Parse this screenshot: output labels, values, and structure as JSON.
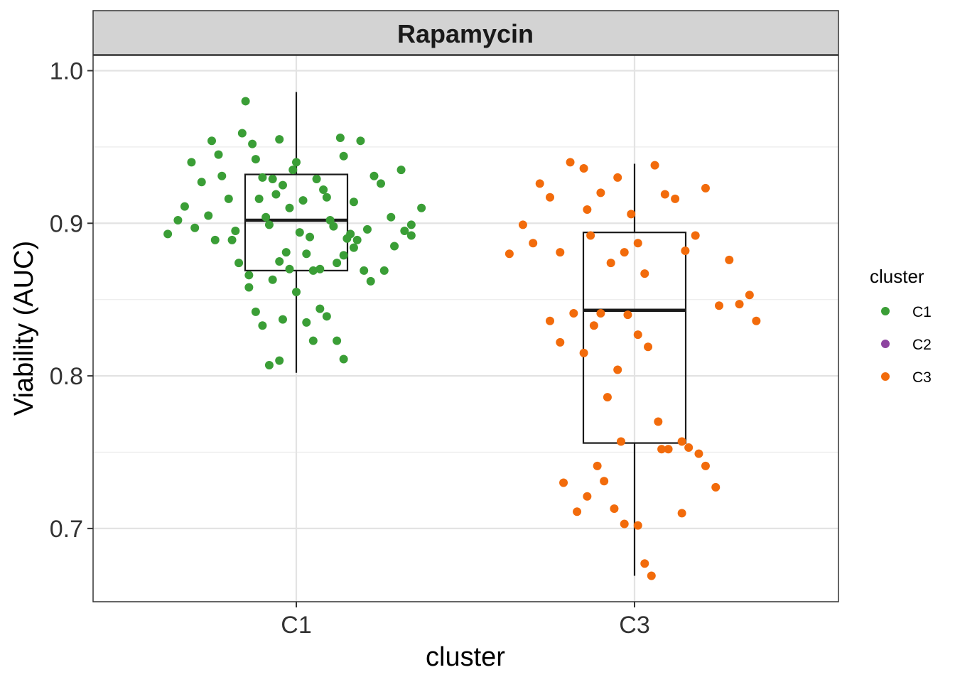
{
  "chart_data": {
    "type": "box",
    "title": "Rapamycin",
    "xlabel": "cluster",
    "ylabel": "Viability (AUC)",
    "categories": [
      "C1",
      "C3"
    ],
    "ylim": [
      0.652,
      1.01
    ],
    "yticks": [
      0.7,
      0.8,
      0.9,
      1.0
    ],
    "ytick_labels": [
      "0.7",
      "0.8",
      "0.9",
      "1.0"
    ],
    "grid": true,
    "legend": {
      "title": "cluster",
      "position": "right",
      "entries": [
        {
          "label": "C1",
          "color": "#3a9e36"
        },
        {
          "label": "C2",
          "color": "#8e44a0"
        },
        {
          "label": "C3",
          "color": "#f26b0b"
        }
      ]
    },
    "boxes": [
      {
        "category": "C1",
        "min": 0.802,
        "q1": 0.869,
        "median": 0.902,
        "q3": 0.932,
        "max": 0.986
      },
      {
        "category": "C3",
        "min": 0.669,
        "q1": 0.756,
        "median": 0.843,
        "q3": 0.894,
        "max": 0.939
      }
    ],
    "series": [
      {
        "name": "C1",
        "color": "#3a9e36",
        "x_offset": [
          -0.35,
          -0.33,
          -0.31,
          -0.28,
          -0.25,
          -0.23,
          -0.2,
          -0.18,
          -0.17,
          -0.14,
          -0.12,
          -0.11,
          -0.09,
          -0.07,
          -0.05,
          -0.04,
          -0.02,
          0.0,
          0.02,
          0.04,
          0.06,
          0.08,
          0.1,
          0.13,
          0.14,
          0.15,
          0.17,
          0.19,
          0.21,
          0.23,
          0.25,
          0.28,
          0.31,
          0.34,
          0.37,
          -0.38,
          -0.3,
          -0.26,
          -0.24,
          -0.22,
          -0.19,
          -0.16,
          -0.15,
          -0.13,
          -0.1,
          -0.08,
          -0.06,
          -0.05,
          -0.03,
          -0.01,
          0.01,
          0.03,
          0.05,
          0.07,
          0.09,
          0.11,
          0.12,
          0.14,
          0.16,
          0.17,
          0.18,
          0.2,
          0.22,
          0.26,
          0.29,
          0.32,
          0.34,
          -0.14,
          -0.12,
          -0.1,
          -0.07,
          -0.04,
          -0.02,
          0.0,
          0.03,
          0.05,
          0.07,
          0.09,
          0.12,
          0.14,
          -0.08,
          -0.05
        ],
        "y": [
          0.902,
          0.911,
          0.94,
          0.927,
          0.954,
          0.945,
          0.916,
          0.895,
          0.874,
          0.866,
          0.942,
          0.916,
          0.904,
          0.929,
          0.955,
          0.925,
          0.91,
          0.94,
          0.915,
          0.891,
          0.929,
          0.922,
          0.902,
          0.956,
          0.944,
          0.89,
          0.914,
          0.954,
          0.896,
          0.931,
          0.926,
          0.904,
          0.935,
          0.899,
          0.91,
          0.893,
          0.897,
          0.905,
          0.889,
          0.931,
          0.889,
          0.959,
          0.98,
          0.952,
          0.93,
          0.899,
          0.919,
          0.875,
          0.881,
          0.935,
          0.894,
          0.88,
          0.869,
          0.87,
          0.917,
          0.898,
          0.874,
          0.879,
          0.893,
          0.884,
          0.889,
          0.869,
          0.862,
          0.869,
          0.885,
          0.895,
          0.892,
          0.858,
          0.842,
          0.833,
          0.863,
          0.837,
          0.87,
          0.855,
          0.835,
          0.823,
          0.844,
          0.839,
          0.823,
          0.811,
          0.807,
          0.81
        ],
        "note_hidden": false
      },
      {
        "name": "C3",
        "color": "#f26b0b",
        "x_offset": [
          -0.37,
          -0.33,
          -0.3,
          -0.28,
          -0.25,
          -0.22,
          -0.19,
          -0.15,
          -0.14,
          -0.13,
          -0.1,
          -0.07,
          -0.05,
          -0.03,
          -0.01,
          0.01,
          0.03,
          0.06,
          0.09,
          0.12,
          0.15,
          0.18,
          0.21,
          0.25,
          0.28,
          0.31,
          0.34,
          0.36,
          -0.25,
          -0.22,
          -0.18,
          -0.15,
          -0.12,
          -0.1,
          -0.08,
          -0.05,
          -0.02,
          0.01,
          0.04,
          0.07,
          0.1,
          0.14,
          0.16,
          0.19,
          0.21,
          0.24,
          -0.21,
          -0.17,
          -0.14,
          -0.11,
          -0.09,
          -0.06,
          -0.03,
          0.03,
          0.05,
          0.08,
          0.14,
          -0.04,
          0.01
        ],
        "y": [
          0.88,
          0.899,
          0.887,
          0.926,
          0.917,
          0.881,
          0.94,
          0.936,
          0.909,
          0.892,
          0.92,
          0.874,
          0.93,
          0.881,
          0.906,
          0.887,
          0.867,
          0.938,
          0.919,
          0.916,
          0.882,
          0.892,
          0.923,
          0.846,
          0.876,
          0.847,
          0.853,
          0.836,
          0.836,
          0.822,
          0.841,
          0.815,
          0.833,
          0.841,
          0.786,
          0.804,
          0.84,
          0.827,
          0.819,
          0.77,
          0.752,
          0.757,
          0.753,
          0.749,
          0.741,
          0.727,
          0.73,
          0.711,
          0.721,
          0.741,
          0.731,
          0.713,
          0.703,
          0.677,
          0.669,
          0.752,
          0.71,
          0.757,
          0.702
        ],
        "note_hidden": false
      }
    ]
  }
}
